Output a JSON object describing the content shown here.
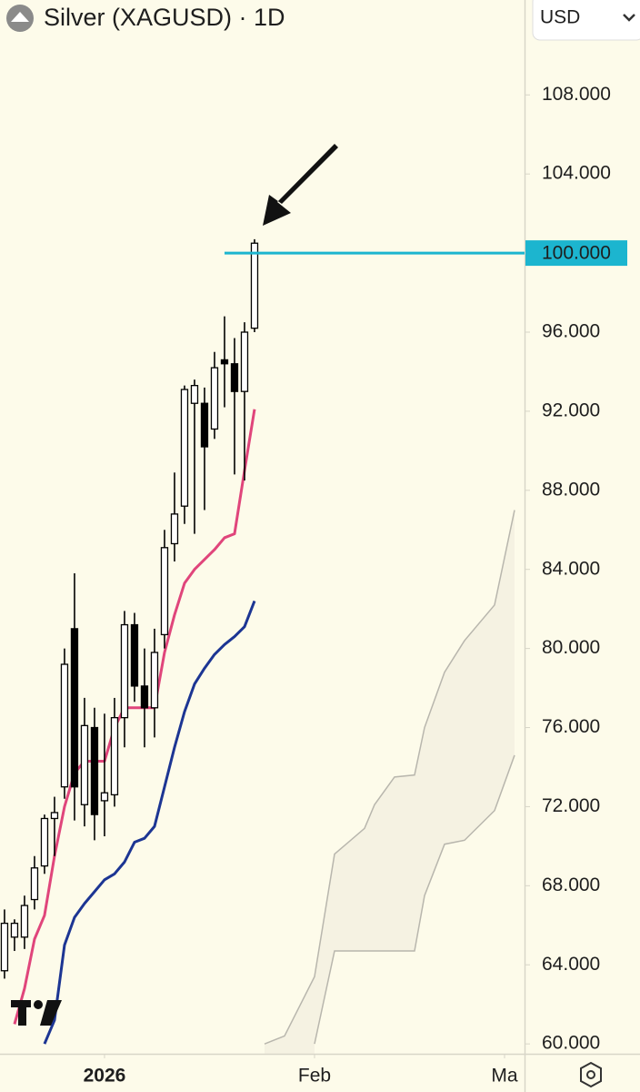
{
  "chart_data": {
    "type": "candlestick",
    "title": "Silver (XAGUSD) · 1D",
    "currency": "USD",
    "x": [
      0,
      1,
      2,
      3,
      4,
      5,
      6,
      7,
      8,
      9,
      10,
      11,
      12,
      13,
      14,
      15,
      16,
      17,
      18,
      19,
      20,
      21,
      22,
      23,
      24,
      25
    ],
    "open": [
      63.7,
      65.4,
      65.4,
      67.3,
      69.0,
      71.4,
      73.0,
      81.0,
      72.1,
      76.0,
      72.3,
      72.6,
      76.5,
      81.2,
      78.1,
      77.0,
      80.7,
      85.3,
      87.2,
      92.4,
      92.4,
      91.1,
      94.6,
      94.4,
      93.0,
      96.2
    ],
    "high": [
      66.8,
      66.3,
      67.5,
      69.5,
      71.6,
      72.5,
      80.0,
      83.8,
      77.5,
      77.0,
      76.7,
      77.5,
      81.9,
      81.8,
      80.0,
      81.0,
      86.0,
      88.9,
      93.3,
      93.6,
      93.2,
      95.0,
      96.8,
      95.7,
      96.5,
      100.7
    ],
    "low": [
      63.3,
      64.7,
      64.8,
      66.8,
      68.6,
      69.5,
      72.4,
      71.3,
      71.0,
      70.3,
      70.5,
      72.0,
      75.0,
      77.3,
      75.0,
      75.5,
      80.0,
      84.4,
      86.3,
      85.8,
      87.0,
      90.6,
      92.2,
      88.8,
      88.5,
      96.0
    ],
    "close": [
      66.1,
      66.1,
      67.0,
      68.9,
      71.4,
      71.7,
      79.2,
      73.0,
      76.1,
      71.6,
      72.7,
      76.5,
      81.2,
      78.1,
      77.0,
      79.8,
      85.1,
      86.8,
      93.1,
      93.3,
      90.2,
      94.2,
      94.4,
      93.0,
      96.0,
      100.5
    ],
    "up_color": "#ffffff",
    "down_color": "#000000",
    "series": [
      {
        "color": "#e0457b",
        "values": [
          null,
          61.0,
          62.8,
          65.3,
          66.5,
          69.5,
          72.0,
          73.7,
          74.3,
          74.3,
          74.3,
          76.0,
          77.0,
          77.0,
          77.0,
          77.0,
          79.8,
          81.7,
          83.3,
          84.0,
          84.5,
          85.0,
          85.6,
          85.8,
          89.0,
          92.1
        ]
      },
      {
        "color": "#1c3593",
        "values": [
          null,
          null,
          null,
          null,
          60.0,
          61.2,
          65.0,
          66.4,
          67.1,
          67.7,
          68.3,
          68.6,
          69.2,
          70.2,
          70.4,
          71.0,
          73.0,
          75.0,
          76.8,
          78.2,
          79.0,
          79.7,
          80.2,
          80.6,
          81.1,
          82.4
        ]
      }
    ],
    "cloud": {
      "color": "#f5f2e2",
      "edge_color": "#b8b6ad",
      "x": [
        26,
        28,
        31,
        33,
        36,
        37,
        39,
        41,
        42,
        44,
        46,
        49,
        51
      ],
      "upper": [
        60.0,
        60.4,
        63.4,
        69.6,
        70.9,
        72.1,
        73.5,
        73.6,
        76.0,
        78.8,
        80.4,
        82.2,
        87.0
      ],
      "lower": [
        null,
        null,
        60.0,
        64.7,
        64.7,
        64.7,
        64.7,
        64.7,
        67.5,
        70.1,
        70.3,
        71.8,
        74.6
      ]
    },
    "price_line": {
      "value": 100,
      "label": "100.000",
      "color": "#1cb5cf"
    },
    "xlim": [
      -0.45,
      52
    ],
    "xticks": [
      {
        "value": 10,
        "label": "2026"
      },
      {
        "value": 31,
        "label": "Feb"
      },
      {
        "value": 50,
        "label": "Ma"
      }
    ],
    "ylim": [
      59.5,
      112.8
    ],
    "yticks": [
      {
        "value": 60,
        "label": "60.000"
      },
      {
        "value": 64,
        "label": "64.000"
      },
      {
        "value": 68,
        "label": "68.000"
      },
      {
        "value": 72,
        "label": "72.000"
      },
      {
        "value": 76,
        "label": "76.000"
      },
      {
        "value": 80,
        "label": "80.000"
      },
      {
        "value": 84,
        "label": "84.000"
      },
      {
        "value": 88,
        "label": "88.000"
      },
      {
        "value": 92,
        "label": "92.000"
      },
      {
        "value": 96,
        "label": "96.000"
      },
      {
        "value": 100,
        "label": "100.000"
      },
      {
        "value": 104,
        "label": "104.000"
      },
      {
        "value": 108,
        "label": "108.000"
      }
    ]
  }
}
